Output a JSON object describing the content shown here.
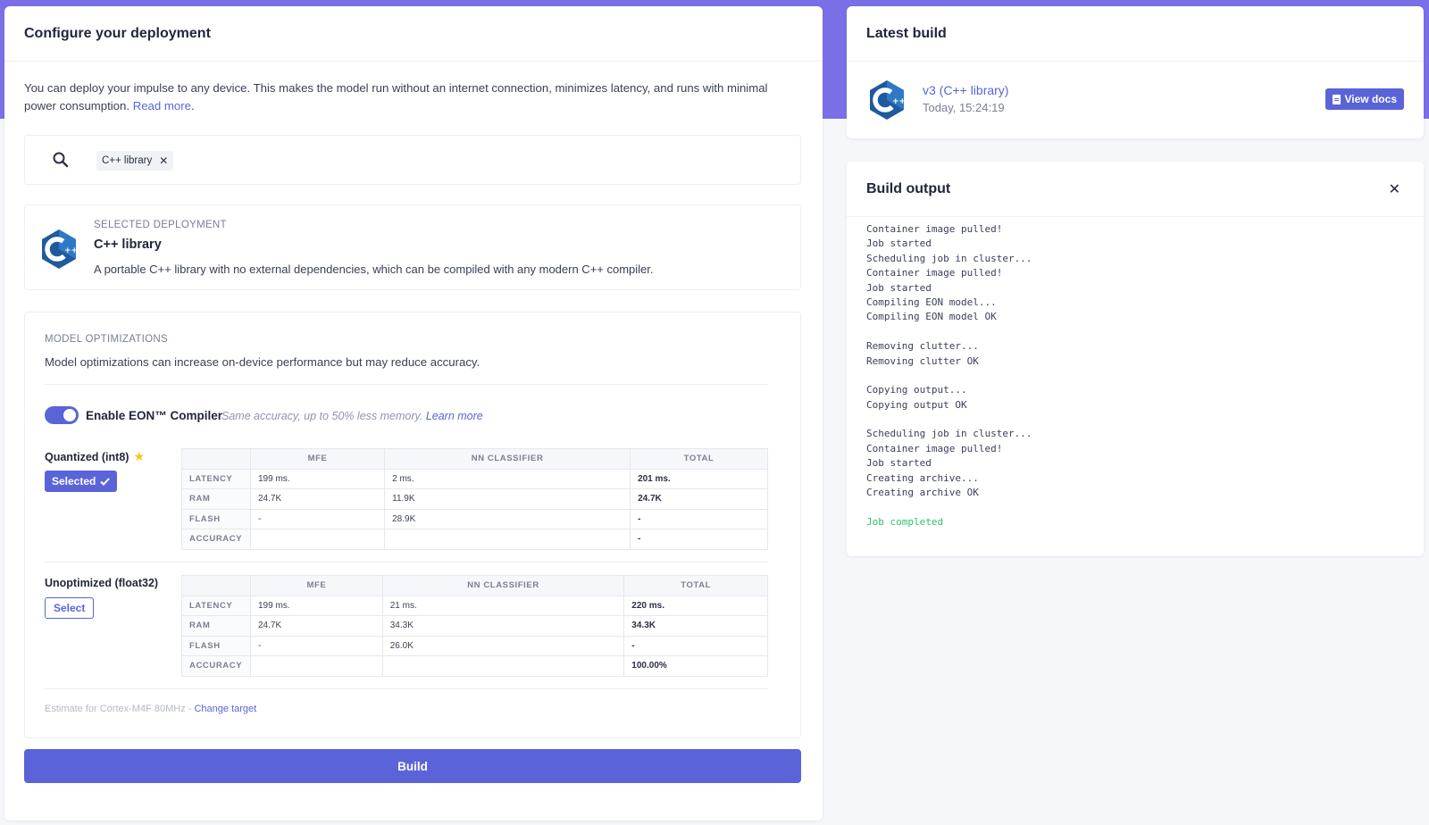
{
  "deploy": {
    "title": "Configure your deployment",
    "intro": "You can deploy your impulse to any device. This makes the model run without an internet connection, minimizes latency, and runs with minimal power consumption.",
    "read_more": "Read more",
    "filter_chip": "C++ library",
    "selected": {
      "label": "SELECTED DEPLOYMENT",
      "name": "C++ library",
      "description": "A portable C++ library with no external dependencies, which can be compiled with any modern C++ compiler."
    }
  },
  "optimizations": {
    "label": "MODEL OPTIMIZATIONS",
    "description": "Model optimizations can increase on-device performance but may reduce accuracy.",
    "eon_label": "Enable EON™ Compiler",
    "eon_note": "Same accuracy, up to 50% less memory.",
    "learn_more": "Learn more",
    "columns": [
      "",
      "MFE",
      "NN CLASSIFIER",
      "TOTAL"
    ],
    "variants": [
      {
        "title": "Quantized (int8)",
        "button": "Selected",
        "selected": true,
        "rows": [
          [
            "LATENCY",
            "199 ms.",
            "2 ms.",
            "201 ms."
          ],
          [
            "RAM",
            "24.7K",
            "11.9K",
            "24.7K"
          ],
          [
            "FLASH",
            "-",
            "28.9K",
            "-"
          ],
          [
            "ACCURACY",
            "",
            "",
            "-"
          ]
        ]
      },
      {
        "title": "Unoptimized (float32)",
        "button": "Select",
        "selected": false,
        "rows": [
          [
            "LATENCY",
            "199 ms.",
            "21 ms.",
            "220 ms."
          ],
          [
            "RAM",
            "24.7K",
            "34.3K",
            "34.3K"
          ],
          [
            "FLASH",
            "-",
            "26.0K",
            "-"
          ],
          [
            "ACCURACY",
            "",
            "",
            "100.00%"
          ]
        ]
      }
    ],
    "estimate": "Estimate for Cortex-M4F 80MHz -",
    "change_target": "Change target"
  },
  "build_button": "Build",
  "latest": {
    "title": "Latest build",
    "name": "v3 (C++ library)",
    "time": "Today, 15:24:19",
    "docs_button": "View docs"
  },
  "output": {
    "title": "Build output",
    "lines": [
      "Container image pulled!",
      "Job started",
      "Scheduling job in cluster...",
      "Container image pulled!",
      "Job started",
      "Compiling EON model...",
      "Compiling EON model OK",
      "",
      "Removing clutter...",
      "Removing clutter OK",
      "",
      "Copying output...",
      "Copying output OK",
      "",
      "Scheduling job in cluster...",
      "Container image pulled!",
      "Job started",
      "Creating archive...",
      "Creating archive OK",
      "",
      "Job completed"
    ]
  },
  "colors": {
    "accent": "#5a64d8",
    "hero": "#7b6fe8",
    "success": "#2fbf71",
    "star": "#f5c518"
  },
  "icons": [
    "search-icon",
    "close-icon",
    "cpp-logo-icon",
    "star-icon",
    "check-icon",
    "doc-icon"
  ]
}
